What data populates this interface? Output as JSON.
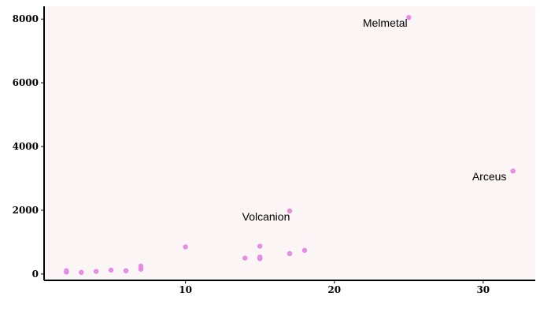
{
  "colors": {
    "plot_background": "#fcf5f5",
    "point_fill": "#ea8bea",
    "point_stroke": "#d978d9",
    "axis": "#000000"
  },
  "chart_data": {
    "type": "scatter",
    "title": "",
    "xlabel": "",
    "ylabel": "",
    "xlim": [
      0.5,
      33.5
    ],
    "ylim": [
      -200,
      8400
    ],
    "grid": false,
    "x_ticks": [
      10,
      20,
      30
    ],
    "y_ticks": [
      0,
      2000,
      4000,
      6000,
      8000
    ],
    "points": [
      {
        "x": 2,
        "y": 60
      },
      {
        "x": 2,
        "y": 100
      },
      {
        "x": 3,
        "y": 50
      },
      {
        "x": 4,
        "y": 80
      },
      {
        "x": 5,
        "y": 120
      },
      {
        "x": 6,
        "y": 100
      },
      {
        "x": 7,
        "y": 150
      },
      {
        "x": 7,
        "y": 250
      },
      {
        "x": 10,
        "y": 850
      },
      {
        "x": 14,
        "y": 500
      },
      {
        "x": 15,
        "y": 480
      },
      {
        "x": 15,
        "y": 530
      },
      {
        "x": 15,
        "y": 870
      },
      {
        "x": 17,
        "y": 640
      },
      {
        "x": 17,
        "y": 1980,
        "label": "Volcanion"
      },
      {
        "x": 18,
        "y": 740
      },
      {
        "x": 25,
        "y": 8050,
        "label": "Melmetal"
      },
      {
        "x": 32,
        "y": 3230,
        "label": "Arceus"
      }
    ]
  }
}
